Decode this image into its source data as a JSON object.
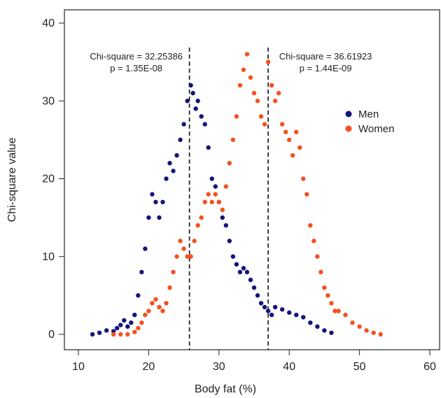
{
  "chart_data": {
    "type": "scatter",
    "xlabel": "Body fat (%)",
    "ylabel": "Chi-square value",
    "xlim": [
      10,
      60
    ],
    "ylim": [
      0,
      40
    ],
    "xticks": [
      "10",
      "20",
      "30",
      "40",
      "50",
      "60"
    ],
    "yticks": [
      "0",
      "10",
      "20",
      "30",
      "40"
    ],
    "legend_position": "right",
    "legend": [
      {
        "name": "Men",
        "color": "#14147a"
      },
      {
        "name": "Women",
        "color": "#f4511e"
      }
    ],
    "vlines": [
      25.8,
      37.0
    ],
    "annotations": [
      {
        "line1": "Chi-square = 32.25386",
        "line2": "p = 1.35E-08",
        "x": 25.8
      },
      {
        "line1": "Chi-square = 36.61923",
        "line2": "p = 1.44E-09",
        "x": 37.0
      }
    ],
    "series": [
      {
        "name": "Men",
        "color": "#14147a",
        "points": [
          [
            12,
            0
          ],
          [
            13,
            0.2
          ],
          [
            14,
            0.5
          ],
          [
            15,
            0.4
          ],
          [
            15.5,
            0.8
          ],
          [
            16,
            1.2
          ],
          [
            16.5,
            1.8
          ],
          [
            17,
            1.0
          ],
          [
            17.5,
            1.5
          ],
          [
            18,
            2.5
          ],
          [
            18.5,
            5
          ],
          [
            19,
            8
          ],
          [
            19.5,
            11
          ],
          [
            20,
            15
          ],
          [
            20.5,
            18
          ],
          [
            21,
            17
          ],
          [
            21.5,
            15
          ],
          [
            22,
            17
          ],
          [
            22.5,
            20
          ],
          [
            23,
            22
          ],
          [
            23.5,
            21
          ],
          [
            24,
            23
          ],
          [
            24.5,
            25
          ],
          [
            25,
            27
          ],
          [
            25.5,
            30
          ],
          [
            26,
            32
          ],
          [
            26.3,
            31
          ],
          [
            26.7,
            29
          ],
          [
            27,
            30
          ],
          [
            27.5,
            28
          ],
          [
            28,
            27
          ],
          [
            28.5,
            24
          ],
          [
            29,
            20
          ],
          [
            29.5,
            19
          ],
          [
            30,
            17
          ],
          [
            30.5,
            15
          ],
          [
            31,
            14
          ],
          [
            31.5,
            12
          ],
          [
            32,
            10
          ],
          [
            32.5,
            9
          ],
          [
            33,
            8
          ],
          [
            33.5,
            8.5
          ],
          [
            34,
            8
          ],
          [
            34.5,
            7
          ],
          [
            35,
            6
          ],
          [
            35.5,
            5
          ],
          [
            36,
            4
          ],
          [
            36.5,
            3.5
          ],
          [
            37,
            3
          ],
          [
            37.5,
            2.5
          ],
          [
            38,
            3.5
          ],
          [
            39,
            3.2
          ],
          [
            40,
            2.8
          ],
          [
            41,
            2.5
          ],
          [
            42,
            2.2
          ],
          [
            43,
            1.5
          ],
          [
            44,
            1
          ],
          [
            45,
            0.5
          ],
          [
            46,
            0.2
          ]
        ]
      },
      {
        "name": "Women",
        "color": "#f4511e",
        "points": [
          [
            15,
            0
          ],
          [
            16,
            0
          ],
          [
            17,
            0
          ],
          [
            18,
            0.3
          ],
          [
            18.5,
            0.8
          ],
          [
            19,
            1.5
          ],
          [
            19.5,
            2.5
          ],
          [
            20,
            3
          ],
          [
            20.5,
            4
          ],
          [
            21,
            4.5
          ],
          [
            21.5,
            3.5
          ],
          [
            22,
            3
          ],
          [
            22.5,
            4
          ],
          [
            23,
            6
          ],
          [
            23.5,
            8
          ],
          [
            24,
            10
          ],
          [
            24.5,
            12
          ],
          [
            25,
            11
          ],
          [
            25.5,
            10
          ],
          [
            26,
            10
          ],
          [
            26.5,
            12
          ],
          [
            27,
            14
          ],
          [
            27.5,
            15
          ],
          [
            28,
            17
          ],
          [
            28.5,
            18
          ],
          [
            29,
            17
          ],
          [
            29.5,
            18
          ],
          [
            30,
            17
          ],
          [
            30.5,
            16
          ],
          [
            31,
            19
          ],
          [
            31.5,
            22
          ],
          [
            32,
            25
          ],
          [
            32.5,
            28
          ],
          [
            33,
            32
          ],
          [
            33.5,
            34
          ],
          [
            34,
            36
          ],
          [
            34.5,
            33
          ],
          [
            35,
            31
          ],
          [
            35.5,
            30
          ],
          [
            36,
            28
          ],
          [
            36.5,
            27
          ],
          [
            37,
            35
          ],
          [
            37.5,
            32
          ],
          [
            38,
            30
          ],
          [
            38.5,
            31
          ],
          [
            39,
            27
          ],
          [
            39.5,
            26
          ],
          [
            40,
            25
          ],
          [
            40.5,
            23
          ],
          [
            41,
            26
          ],
          [
            41.5,
            24
          ],
          [
            42,
            20
          ],
          [
            42.5,
            18
          ],
          [
            43,
            14
          ],
          [
            43.5,
            12
          ],
          [
            44,
            10
          ],
          [
            44.5,
            8
          ],
          [
            45,
            6
          ],
          [
            45.5,
            5
          ],
          [
            46,
            4
          ],
          [
            46.5,
            3
          ],
          [
            47,
            3
          ],
          [
            48,
            2.5
          ],
          [
            49,
            1.5
          ],
          [
            50,
            1
          ],
          [
            51,
            0.5
          ],
          [
            52,
            0.2
          ],
          [
            53,
            0
          ]
        ]
      }
    ]
  }
}
